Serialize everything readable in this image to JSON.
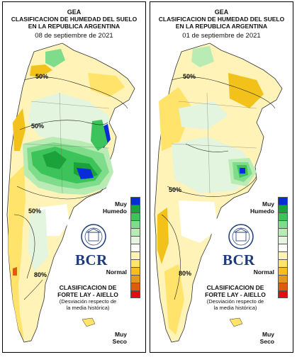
{
  "panels": [
    {
      "org": "GEA",
      "title_line1": "CLASIFICACION DE HUMEDAD DEL SUELO",
      "title_line2": "EN LA REPUBLICA ARGENTINA",
      "date": "08 de septiembre de 2021",
      "contour_labels": [
        "50%",
        "50%",
        "50%",
        "80%"
      ]
    },
    {
      "org": "GEA",
      "title_line1": "CLASIFICACION DE HUMEDAD DEL SUELO",
      "title_line2": "EN LA REPUBLICA ARGENTINA",
      "date": "01 de septiembre de 2021",
      "contour_labels": [
        "50%",
        "50%",
        "80%"
      ]
    }
  ],
  "legend": {
    "top_label_1": "Muy",
    "top_label_2": "Humedo",
    "mid_label": "Normal",
    "bottom_label_1": "Muy",
    "bottom_label_2": "Seco",
    "colors": [
      "#0a2bd8",
      "#1aa33a",
      "#3cc35a",
      "#7fdc8a",
      "#b8ecb4",
      "#e3f5de",
      "#ffffff",
      "#fff3b8",
      "#ffe36a",
      "#f3c21a",
      "#e39a1a",
      "#e05a10",
      "#e01010"
    ]
  },
  "brand": {
    "logo_text": "BCR",
    "clasif_line1": "CLASIFICACION DE",
    "clasif_line2": "FORTE LAY - AIELLO",
    "clasif_line3": "(Desviación respecto de",
    "clasif_line4": "la media histórica)"
  }
}
